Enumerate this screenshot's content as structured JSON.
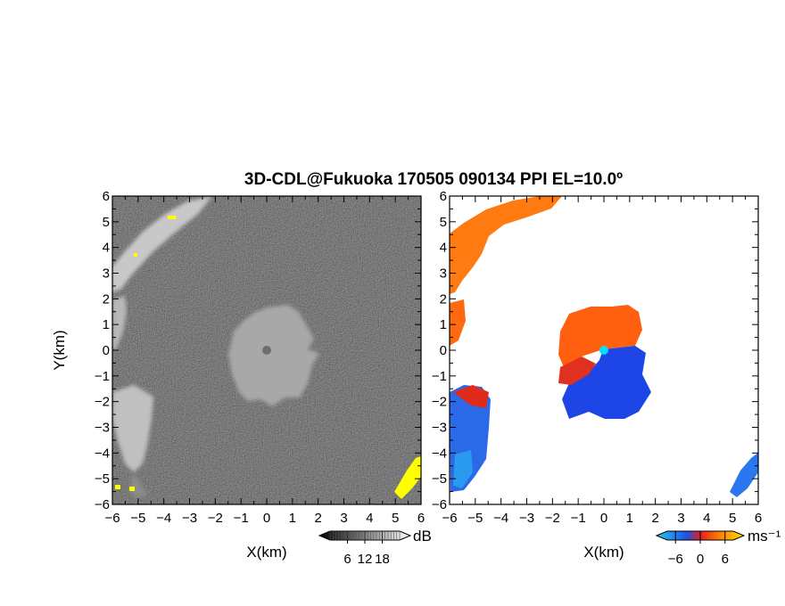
{
  "chart_data": {
    "type": "heatmap",
    "title": "3D-CDL@Fukuoka 170505 090134 PPI EL=10.0º",
    "panels": [
      {
        "name": "reflectivity",
        "xlabel": "X(km)",
        "ylabel": "Y(km)",
        "xlim": [
          -6,
          6
        ],
        "ylim": [
          -6,
          6
        ],
        "xticks": [
          "−6",
          "−5",
          "−4",
          "−3",
          "−2",
          "−1",
          "0",
          "1",
          "2",
          "3",
          "4",
          "5",
          "6"
        ],
        "yticks": [
          "−6",
          "−5",
          "−4",
          "−3",
          "−2",
          "−1",
          "0",
          "1",
          "2",
          "3",
          "4",
          "5",
          "6"
        ],
        "colorbar": {
          "unit": "dB",
          "ticks": [
            "6",
            "12",
            "18"
          ],
          "tick_values": [
            6,
            12,
            18
          ],
          "range": [
            0,
            24
          ],
          "colors": [
            "#000000",
            "#ffffff"
          ]
        }
      },
      {
        "name": "doppler-velocity",
        "xlabel": "X(km)",
        "xlim": [
          -6,
          6
        ],
        "ylim": [
          -6,
          6
        ],
        "xticks": [
          "−6",
          "−5",
          "−4",
          "−3",
          "−2",
          "−1",
          "0",
          "1",
          "2",
          "3",
          "4",
          "5",
          "6"
        ],
        "yticks": [
          "−6",
          "−5",
          "−4",
          "−3",
          "−2",
          "−1",
          "0",
          "1",
          "2",
          "3",
          "4",
          "5",
          "6"
        ],
        "colorbar": {
          "unit": "ms⁻¹",
          "ticks": [
            "−6",
            "0",
            "6"
          ],
          "tick_values": [
            -6,
            0,
            6
          ],
          "range": [
            -8,
            8
          ],
          "colors": [
            "#28c8f0",
            "#1e50e6",
            "#e61e1e",
            "#ff8c00",
            "#ffdc00"
          ]
        }
      }
    ]
  },
  "colors": {
    "reflectivity_background": "#2b2b2b",
    "clutter": "#ffff00",
    "radar_site_left": "#6e6e6e",
    "radar_site_right": "#00e0ff"
  }
}
